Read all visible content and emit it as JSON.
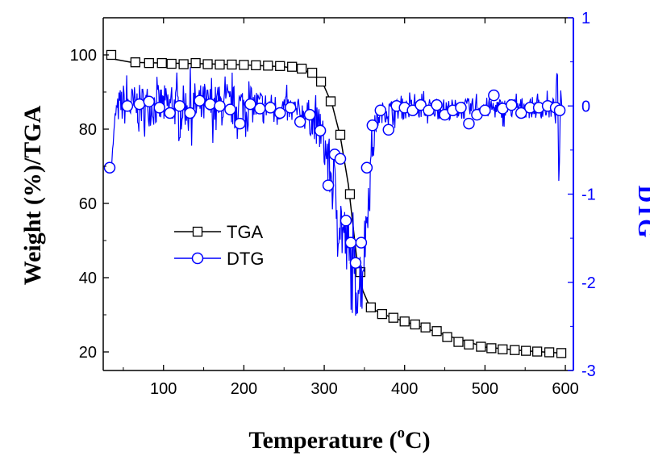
{
  "chart_data": {
    "type": "line",
    "xlabel": "Temperature (",
    "xlabel_sup": "o",
    "xlabel_tail": "C)",
    "ylabel": "Weight (%)/TGA",
    "y2label": "DTG",
    "xlim": [
      25,
      610
    ],
    "ylim": [
      15,
      110
    ],
    "y2lim": [
      -3,
      1
    ],
    "x_ticks": [
      100,
      200,
      300,
      400,
      500,
      600
    ],
    "y_ticks": [
      20,
      40,
      60,
      80,
      100
    ],
    "y2_ticks": [
      -3,
      -2,
      -1,
      0,
      1
    ],
    "colors": {
      "tga": "#000000",
      "dtg": "#0000ff"
    },
    "legend_position": "center-left",
    "series": [
      {
        "name": "TGA",
        "axis": "left",
        "marker": "square",
        "x": [
          35,
          65,
          82,
          98,
          110,
          125,
          140,
          155,
          170,
          185,
          200,
          215,
          230,
          245,
          260,
          272,
          285,
          296,
          308,
          320,
          332,
          345,
          358,
          372,
          386,
          400,
          413,
          426,
          440,
          453,
          467,
          480,
          495,
          508,
          522,
          537,
          551,
          565,
          580,
          595
        ],
        "values": [
          100,
          98,
          97.8,
          97.8,
          97.6,
          97.5,
          97.8,
          97.5,
          97.4,
          97.4,
          97.3,
          97.2,
          97.1,
          97.0,
          96.8,
          96.3,
          95.2,
          92.8,
          87.5,
          78.5,
          62.5,
          41.5,
          32.0,
          30.2,
          29.2,
          28.2,
          27.4,
          26.6,
          25.6,
          24.0,
          22.7,
          22.0,
          21.4,
          21.0,
          20.7,
          20.5,
          20.3,
          20.1,
          19.9,
          19.7
        ],
        "line_x": [
          30,
          40,
          60,
          100,
          150,
          200,
          250,
          275,
          290,
          300,
          310,
          320,
          330,
          340,
          348,
          355,
          365,
          380,
          400,
          450,
          500,
          550,
          600
        ],
        "line_values": [
          100.5,
          98.8,
          98.0,
          97.8,
          97.6,
          97.3,
          96.8,
          96.0,
          94.0,
          91.5,
          86.5,
          78.0,
          65.0,
          46.0,
          36.5,
          33.0,
          31.0,
          29.6,
          28.2,
          24.6,
          21.3,
          20.3,
          19.6
        ]
      },
      {
        "name": "DTG",
        "axis": "right",
        "marker": "circle",
        "x": [
          33,
          55,
          70,
          82,
          95,
          108,
          120,
          133,
          145,
          158,
          170,
          183,
          195,
          208,
          220,
          233,
          245,
          258,
          270,
          282,
          295,
          305,
          313,
          320,
          327,
          333,
          339,
          346,
          353,
          360,
          370,
          380,
          390,
          400,
          410,
          420,
          430,
          440,
          450,
          460,
          470,
          480,
          490,
          500,
          511,
          522,
          533,
          545,
          556,
          567,
          578,
          588,
          593
        ],
        "values": [
          -0.7,
          0.0,
          0.02,
          0.05,
          -0.02,
          -0.08,
          0.0,
          -0.08,
          0.06,
          0.02,
          0.0,
          -0.04,
          -0.2,
          0.02,
          -0.03,
          -0.02,
          -0.08,
          -0.02,
          -0.18,
          -0.1,
          -0.28,
          -0.9,
          -0.55,
          -0.6,
          -1.3,
          -1.55,
          -1.78,
          -1.55,
          -0.7,
          -0.22,
          -0.05,
          -0.27,
          0.0,
          -0.02,
          -0.05,
          0.01,
          -0.05,
          0.01,
          -0.1,
          -0.05,
          -0.02,
          -0.2,
          -0.1,
          -0.05,
          0.12,
          -0.03,
          0.01,
          -0.08,
          -0.02,
          -0.02,
          0.0,
          -0.02,
          -0.05
        ],
        "noise_x": [
          35,
          40,
          45,
          50,
          55,
          60,
          70,
          80,
          90,
          100,
          110,
          120,
          130,
          140,
          150,
          160,
          170,
          180,
          190,
          200,
          210,
          220,
          230,
          240,
          250,
          260,
          270,
          280,
          290,
          295,
          300,
          305,
          310,
          315,
          320,
          325,
          330,
          335,
          340,
          345,
          350,
          355,
          360,
          365,
          370,
          380,
          400,
          420,
          440,
          460,
          480,
          500,
          520,
          540,
          560,
          580,
          588,
          590,
          592,
          594,
          596
        ],
        "noise_center": [
          -0.7,
          -0.1,
          0.0,
          0.02,
          0.0,
          0.0,
          0.0,
          0.01,
          0.0,
          0.0,
          0.0,
          -0.01,
          0.0,
          0.0,
          0.0,
          0.0,
          0.0,
          -0.01,
          0.0,
          0.0,
          0.0,
          0.0,
          -0.01,
          -0.02,
          -0.03,
          -0.05,
          -0.08,
          -0.12,
          -0.2,
          -0.3,
          -0.45,
          -0.65,
          -0.85,
          -1.1,
          -1.3,
          -1.5,
          -1.7,
          -1.9,
          -2.0,
          -1.95,
          -1.6,
          -1.0,
          -0.45,
          -0.15,
          -0.08,
          -0.05,
          -0.03,
          -0.02,
          -0.03,
          -0.04,
          -0.03,
          -0.02,
          -0.03,
          -0.02,
          -0.02,
          -0.03,
          -0.02,
          0.5,
          -1.0,
          0.2,
          -0.05
        ],
        "noise_amp": [
          0.05,
          0.08,
          0.25,
          0.3,
          0.3,
          0.3,
          0.3,
          0.3,
          0.3,
          0.3,
          0.3,
          0.3,
          0.3,
          0.35,
          0.3,
          0.3,
          0.3,
          0.3,
          0.3,
          0.3,
          0.25,
          0.25,
          0.2,
          0.2,
          0.2,
          0.2,
          0.2,
          0.25,
          0.25,
          0.3,
          0.35,
          0.4,
          0.45,
          0.5,
          0.55,
          0.55,
          0.6,
          0.6,
          0.55,
          0.5,
          0.45,
          0.35,
          0.25,
          0.2,
          0.15,
          0.15,
          0.15,
          0.15,
          0.15,
          0.15,
          0.15,
          0.15,
          0.15,
          0.15,
          0.15,
          0.15,
          0.15,
          0.0,
          0.0,
          0.0,
          0.0
        ]
      }
    ]
  }
}
